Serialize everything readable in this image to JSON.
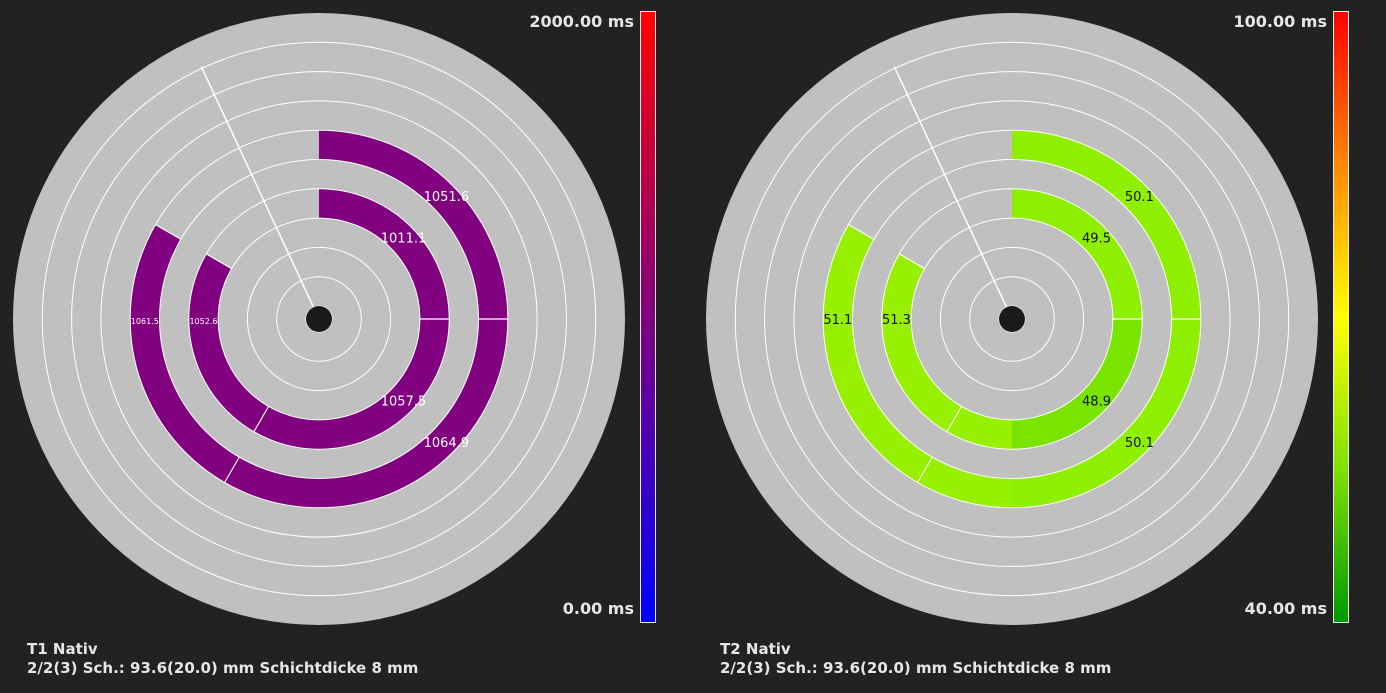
{
  "chart_data": [
    {
      "type": "polar-bullseye",
      "title": "T1 Nativ",
      "subtitle": "2/2(3) Sch.: 93.6(20.0) mm Schichtdicke 8 mm",
      "ring_count": 10,
      "colorbar": {
        "min_label": "0.00 ms",
        "max_label": "2000.00 ms",
        "colors": [
          "#0000ff",
          "#800080",
          "#ff0000"
        ]
      },
      "segments": [
        {
          "ring": 6,
          "segment": "upper-right",
          "value": 1011.1,
          "label": "1011.1",
          "color": "#800080"
        },
        {
          "ring": 6,
          "segment": "left",
          "value": 1052.6,
          "label": "1052.6",
          "color": "#800080"
        },
        {
          "ring": 6,
          "segment": "lower-right",
          "value": 1057.5,
          "label": "1057.5",
          "color": "#800080"
        },
        {
          "ring": 4,
          "segment": "upper-right",
          "value": 1051.6,
          "label": "1051.6",
          "color": "#800080"
        },
        {
          "ring": 4,
          "segment": "left",
          "value": 1061.5,
          "label": "1061.5",
          "color": "#800080"
        },
        {
          "ring": 4,
          "segment": "lower-right",
          "value": 1064.9,
          "label": "1064.9",
          "color": "#800080"
        }
      ]
    },
    {
      "type": "polar-bullseye",
      "title": "T2 Nativ",
      "subtitle": "2/2(3) Sch.: 93.6(20.0) mm Schichtdicke 8 mm",
      "ring_count": 10,
      "colorbar": {
        "min_label": "40.00 ms",
        "max_label": "100.00 ms",
        "colors": [
          "#009900",
          "#80e000",
          "#ffff00",
          "#ff8800",
          "#ff0000"
        ]
      },
      "segments": [
        {
          "ring": 6,
          "segment": "upper-right",
          "value": 49.5,
          "label": "49.5",
          "color": "#8ef000"
        },
        {
          "ring": 6,
          "segment": "left",
          "value": 51.3,
          "label": "51.3",
          "color": "#96f000"
        },
        {
          "ring": 6,
          "segment": "lower-right",
          "value": 48.9,
          "label": "48.9",
          "color": "#78e400"
        },
        {
          "ring": 4,
          "segment": "upper-right",
          "value": 50.1,
          "label": "50.1",
          "color": "#8ef000"
        },
        {
          "ring": 4,
          "segment": "left",
          "value": 51.1,
          "label": "51.1",
          "color": "#96f000"
        },
        {
          "ring": 4,
          "segment": "lower-right",
          "value": 50.1,
          "label": "50.1",
          "color": "#8ef000"
        }
      ]
    }
  ]
}
